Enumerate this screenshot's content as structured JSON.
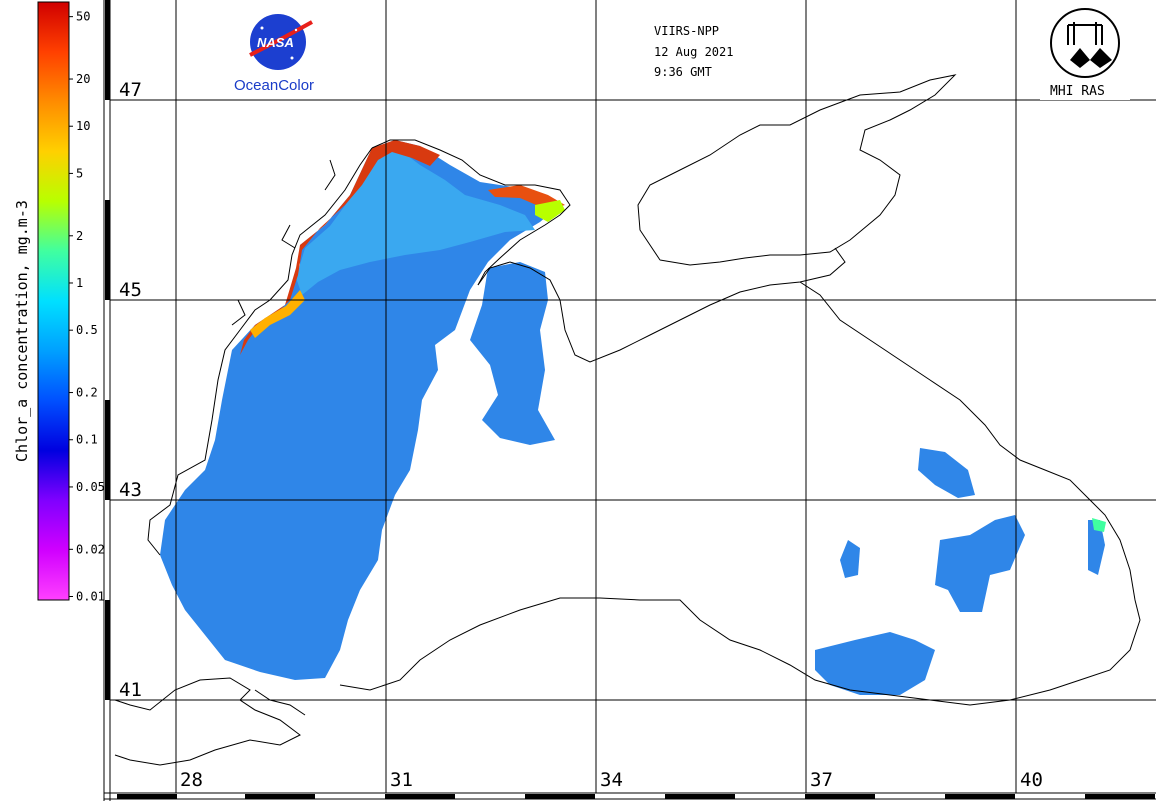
{
  "header": {
    "sensor": "VIIRS-NPP",
    "date": "12 Aug 2021",
    "time": "9:36 GMT"
  },
  "logos": {
    "nasa_text": "NASA",
    "oceancolor_text": "OceanColor",
    "mhi_text": "MHI RAS"
  },
  "colorbar": {
    "title": "Chlor_a concentration, mg.m-3",
    "ticks": [
      "50",
      "20",
      "10",
      "5",
      "2",
      "1",
      "0.5",
      "0.2",
      "0.1",
      "0.05",
      "0.02",
      "0.01"
    ],
    "colors": [
      "#d00000",
      "#ff4000",
      "#ff8c00",
      "#ffd000",
      "#b8ff00",
      "#40ffa0",
      "#00e0ff",
      "#00a0ff",
      "#0050ff",
      "#0000e0",
      "#8000ff",
      "#d000ff",
      "#ff40ff"
    ],
    "scale": "log"
  },
  "grid": {
    "latitudes": [
      "47",
      "45",
      "43",
      "41"
    ],
    "longitudes": [
      "28",
      "31",
      "34",
      "37",
      "40"
    ]
  },
  "colors": {
    "land_outline": "#000000",
    "water_low": "#2f86e8",
    "water_mid": "#3aa8f0",
    "coast_high": "#d83a10"
  }
}
